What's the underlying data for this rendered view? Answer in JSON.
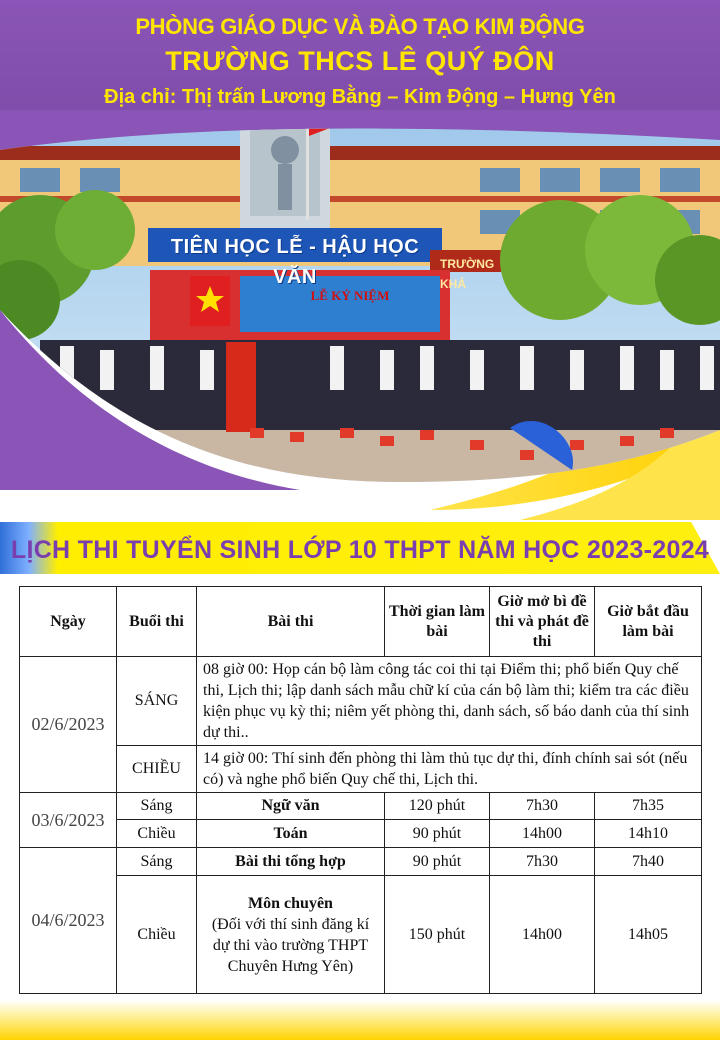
{
  "header": {
    "line1": "PHÒNG GIÁO DỤC VÀ ĐÀO TẠO KIM ĐỘNG",
    "line2": "TRƯỜNG THCS LÊ QUÝ ĐÔN",
    "line3": "Địa chỉ:  Thị trấn Lương Bằng – Kim Động – Hưng Yên"
  },
  "photo": {
    "banner": "TIÊN HỌC LỄ - HẬU HỌC VĂN",
    "banner_right": "TRƯỜNG KHẢ",
    "stage_text": "LỄ KỶ NIỆM"
  },
  "title": "LỊCH THI TUYỂN SINH LỚP 10 THPT NĂM HỌC 2023-2024",
  "table": {
    "headers": {
      "date": "Ngày",
      "session": "Buổi thi",
      "exam": "Bài thi",
      "duration": "Thời gian làm bài",
      "open_time": "Giờ mở bì đề thi và phát đề thi",
      "start_time": "Giờ bắt đầu làm bài"
    },
    "day1": {
      "date": "02/6/2023",
      "morning": {
        "session": "SÁNG",
        "text": " 08 giờ 00: Họp cán bộ làm công tác coi thi tại Điểm thi; phổ biến Quy chế thi, Lịch thi; lập danh sách mẫu chữ kí của cán bộ làm thi; kiểm tra các điều kiện phục vụ kỳ thi; niêm yết phòng thi, danh sách, số báo danh của thí sinh dự thi.."
      },
      "afternoon": {
        "session": "CHIỀU",
        "text": "14 giờ 00: Thí sinh đến phòng thi làm thủ tục dự thi, đính chính sai sót (nếu có) và nghe phổ biến Quy chế thi, Lịch thi."
      }
    },
    "day2": {
      "date": "03/6/2023",
      "rows": [
        {
          "session": "Sáng",
          "exam": "Ngữ văn",
          "duration": "120 phút",
          "open": "7h30",
          "start": "7h35"
        },
        {
          "session": "Chiều",
          "exam": "Toán",
          "duration": "90 phút",
          "open": "14h00",
          "start": "14h10"
        }
      ]
    },
    "day3": {
      "date": "04/6/2023",
      "morning": {
        "session": "Sáng",
        "exam": "Bài thi tổng hợp",
        "duration": "90 phút",
        "open": "7h30",
        "start": "7h40"
      },
      "afternoon": {
        "session": "Chiều",
        "exam": "Môn chuyên",
        "exam_note": "(Đối với thí sinh đăng kí dự thi vào trường THPT Chuyên Hưng Yên)",
        "duration": "150 phút",
        "open": "14h00",
        "start": "14h05"
      }
    }
  }
}
